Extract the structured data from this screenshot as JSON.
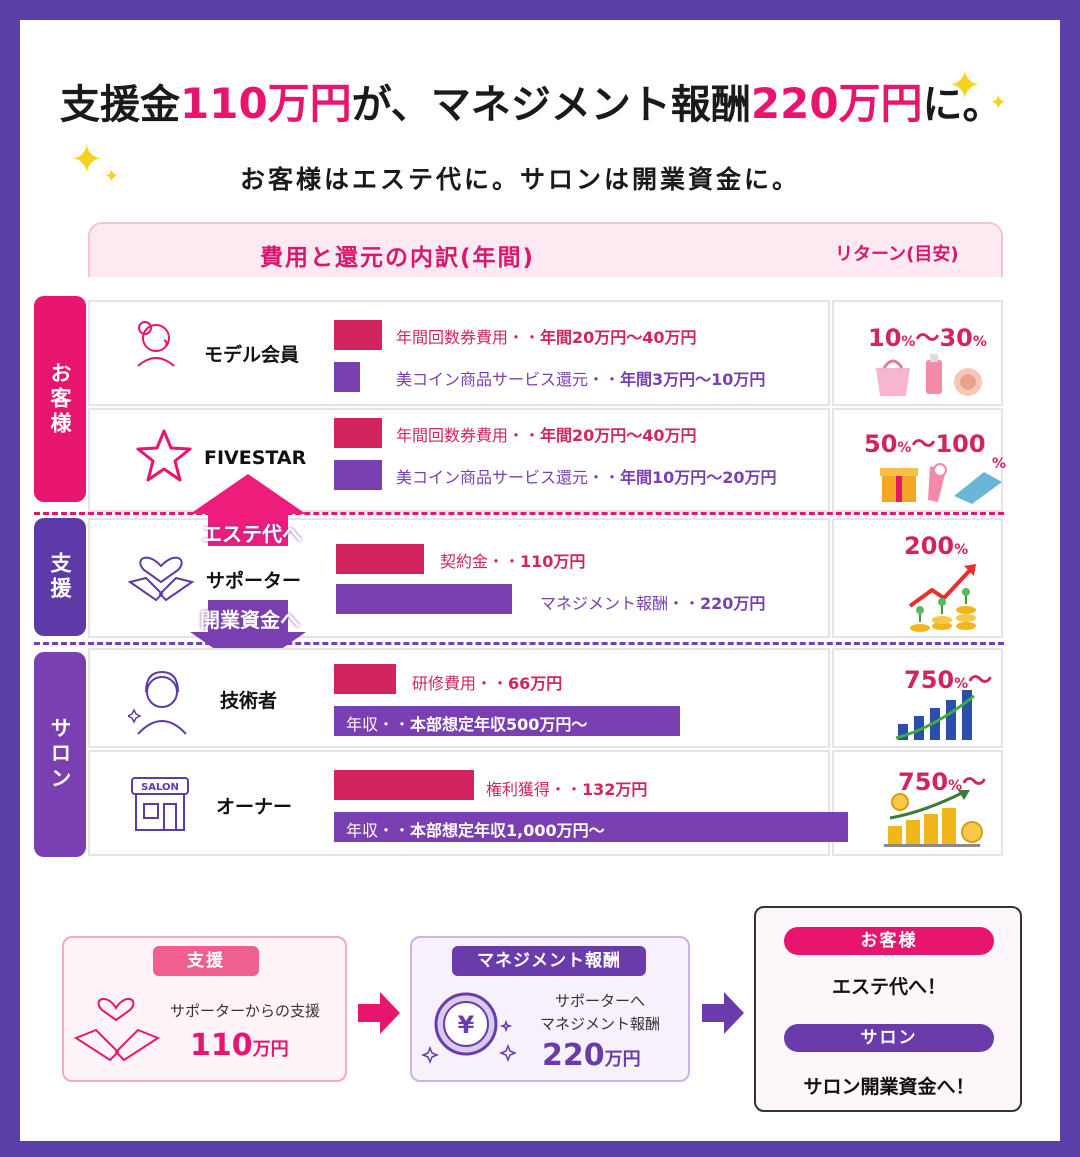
{
  "headline": {
    "part1": "支援金",
    "amount1": "110万円",
    "part2": "が、マネジメント報酬",
    "amount2": "220万円",
    "part3": "に。"
  },
  "subline": "お客様はエステ代に。サロンは開業資金に。",
  "table": {
    "header_main": "費用と還元の内訳(年間)",
    "header_right": "リターン(目安)",
    "groups": {
      "customer": "お客様",
      "support": "支援",
      "salon": "サロン"
    },
    "rows": [
      {
        "label": "モデル会員",
        "icon": "woman-profile-icon",
        "bar1_text": "年間回数券費用・・",
        "bar1_value": "年間20万円〜40万円",
        "bar2_text": "美コイン商品サービス還元・・",
        "bar2_value": "年間3万円〜10万円",
        "return_low": "10",
        "return_high": "30",
        "return_unit": "%",
        "return_sep": "〜"
      },
      {
        "label": "FIVESTAR",
        "icon": "star-outline-icon",
        "bar1_text": "年間回数券費用・・",
        "bar1_value": "年間20万円〜40万円",
        "bar2_text": "美コイン商品サービス還元・・",
        "bar2_value": "年間10万円〜20万円",
        "return_low": "50",
        "return_high": "100",
        "return_unit": "%",
        "return_sep": "〜"
      },
      {
        "label": "サポーター",
        "icon": "heart-handshake-icon",
        "bar1_text": "契約金・・",
        "bar1_value": "110万円",
        "bar2_text": "マネジメント報酬・・",
        "bar2_value": "220万円",
        "return_value": "200",
        "return_unit": "%"
      },
      {
        "label": "技術者",
        "icon": "person-headset-icon",
        "bar1_text": "研修費用・・",
        "bar1_value": "66万円",
        "bar2_text": "年収・・",
        "bar2_value": "本部想定年収500万円〜",
        "return_value": "750",
        "return_unit": "%",
        "return_suffix": "〜"
      },
      {
        "label": "オーナー",
        "icon": "salon-shop-icon",
        "shop_sign": "SALON",
        "bar1_text": "権利獲得・・",
        "bar1_value": "132万円",
        "bar2_text": "年収・・",
        "bar2_value": "本部想定年収1,000万円〜",
        "return_value": "750",
        "return_unit": "%",
        "return_suffix": "〜"
      }
    ],
    "arrow_up_label": "エステ代へ",
    "arrow_down_label": "開業資金へ"
  },
  "flow": {
    "card1": {
      "pill": "支援",
      "text": "サポーターからの支援",
      "amount": "110",
      "unit": "万円"
    },
    "card2": {
      "pill": "マネジメント報酬",
      "text1": "サポーターへ",
      "text2": "マネジメント報酬",
      "amount": "220",
      "unit": "万円"
    },
    "card3": {
      "pill1": "お客様",
      "text1": "エステ代へ！",
      "pill2": "サロン",
      "text2": "サロン開業資金へ！"
    }
  },
  "colors": {
    "pink": "#e8156f",
    "crimson": "#d2245f",
    "purple": "#7a3fb0",
    "frame": "#5b3fa8",
    "gold": "#f7d21b"
  }
}
